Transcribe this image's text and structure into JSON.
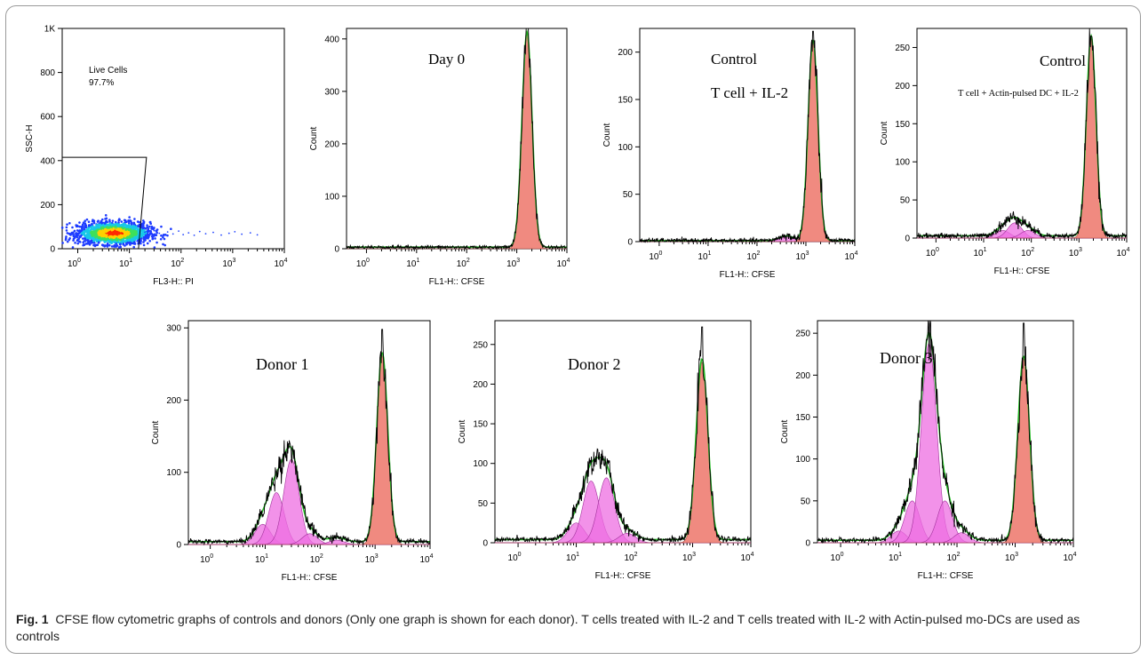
{
  "caption": {
    "label": "Fig. 1",
    "text": "CFSE flow cytometric graphs of controls and donors (Only one graph is shown for each donor). T cells treated with IL-2 and T cells treated with IL-2 with Actin-pulsed mo-DCs are used as controls"
  },
  "colors": {
    "parent_fill": "#f08a80",
    "generation_fill": "#ee6ee2",
    "fit_line": "#22bb22",
    "raw_line": "#000000",
    "gate_line": "#000000"
  },
  "chart_data": [
    {
      "id": "live-cells",
      "type": "scatter",
      "xlabel": "FL3-H:: PI",
      "ylabel": "SSC-H",
      "x_scale": "log",
      "xlim": [
        0.5,
        10000
      ],
      "x_ticks": [
        "10^0",
        "10^1",
        "10^2",
        "10^3",
        "10^4"
      ],
      "ylim": [
        0,
        1000
      ],
      "y_ticks": [
        "0",
        "200",
        "400",
        "600",
        "800",
        "1K"
      ],
      "gate": {
        "label": "Live Cells",
        "percent": "97.7%",
        "x_range": [
          0.5,
          15
        ],
        "y_range": [
          0,
          415
        ]
      },
      "density": {
        "x_center": 5,
        "y_center": 70,
        "x_spread_log": 0.35,
        "y_spread": 25
      },
      "sparse_events": [
        [
          20,
          75
        ],
        [
          25,
          62
        ],
        [
          30,
          82
        ],
        [
          38,
          70
        ],
        [
          45,
          58
        ],
        [
          55,
          76
        ],
        [
          70,
          67
        ],
        [
          90,
          80
        ],
        [
          110,
          64
        ],
        [
          140,
          72
        ],
        [
          180,
          61
        ],
        [
          230,
          78
        ],
        [
          300,
          68
        ],
        [
          420,
          74
        ],
        [
          600,
          62
        ],
        [
          850,
          70
        ],
        [
          1100,
          77
        ],
        [
          1500,
          66
        ],
        [
          2200,
          72
        ],
        [
          3000,
          63
        ]
      ]
    },
    {
      "id": "day-0",
      "type": "area",
      "annotation": [
        "Day 0"
      ],
      "annotation_style": "serif",
      "xlabel": "FL1-H:: CFSE",
      "ylabel": "Count",
      "x_scale": "log",
      "xlim": [
        0.4,
        10000
      ],
      "x_ticks": [
        "10^0",
        "10^1",
        "10^2",
        "10^3",
        "10^4"
      ],
      "ylim": [
        0,
        420
      ],
      "y_ticks": [
        0,
        100,
        200,
        300,
        400
      ],
      "parent_peak": {
        "center": 1600,
        "height": 410,
        "width_log": 0.1
      },
      "generation_peaks": [],
      "baseline": 3,
      "raw_peak_max": 420
    },
    {
      "id": "control-t-il2",
      "type": "area",
      "annotation": [
        "Control",
        "T cell + IL-2"
      ],
      "annotation_style": "serif",
      "xlabel": "FL1-H:: CFSE",
      "ylabel": "Count",
      "x_scale": "log",
      "xlim": [
        0.4,
        10000
      ],
      "x_ticks": [
        "10^0",
        "10^1",
        "10^2",
        "10^3",
        "10^4"
      ],
      "ylim": [
        0,
        225
      ],
      "y_ticks": [
        0,
        50,
        100,
        150,
        200
      ],
      "parent_peak": {
        "center": 1400,
        "height": 212,
        "width_log": 0.1
      },
      "generation_peaks": [
        {
          "center": 400,
          "height": 5,
          "width_log": 0.15
        }
      ],
      "baseline": 1,
      "raw_peak_max": 222
    },
    {
      "id": "control-t-dc-il2",
      "type": "area",
      "annotation": [
        "Control",
        "T cell + Actin-pulsed DC + IL-2"
      ],
      "annotation_style": "serif",
      "xlabel": "FL1-H:: CFSE",
      "ylabel": "Count",
      "x_scale": "log",
      "xlim": [
        0.4,
        10000
      ],
      "x_ticks": [
        "10^0",
        "10^1",
        "10^2",
        "10^3",
        "10^4"
      ],
      "ylim": [
        0,
        275
      ],
      "y_ticks": [
        0,
        50,
        100,
        150,
        200,
        250
      ],
      "parent_peak": {
        "center": 1800,
        "height": 262,
        "width_log": 0.1
      },
      "generation_peaks": [
        {
          "center": 25,
          "height": 10,
          "width_log": 0.15
        },
        {
          "center": 45,
          "height": 20,
          "width_log": 0.15
        },
        {
          "center": 85,
          "height": 10,
          "width_log": 0.15
        }
      ],
      "baseline": 3,
      "raw_peak_max": 265
    },
    {
      "id": "donor-1",
      "type": "area",
      "annotation": [
        "Donor 1"
      ],
      "annotation_style": "serif",
      "xlabel": "FL1-H:: CFSE",
      "ylabel": "Count",
      "x_scale": "log",
      "xlim": [
        0.4,
        10000
      ],
      "x_ticks": [
        "10^0",
        "10^1",
        "10^2",
        "10^3",
        "10^4"
      ],
      "ylim": [
        0,
        310
      ],
      "y_ticks": [
        0,
        100,
        200,
        300
      ],
      "parent_peak": {
        "center": 1350,
        "height": 262,
        "width_log": 0.1
      },
      "generation_peaks": [
        {
          "center": 9,
          "height": 28,
          "width_log": 0.14
        },
        {
          "center": 16,
          "height": 72,
          "width_log": 0.14
        },
        {
          "center": 30,
          "height": 118,
          "width_log": 0.14
        },
        {
          "center": 65,
          "height": 15,
          "width_log": 0.14
        },
        {
          "center": 200,
          "height": 6,
          "width_log": 0.14
        }
      ],
      "baseline": 4,
      "raw_peak_max": 298
    },
    {
      "id": "donor-2",
      "type": "area",
      "annotation": [
        "Donor 2"
      ],
      "annotation_style": "serif",
      "xlabel": "FL1-H:: CFSE",
      "ylabel": "Count",
      "x_scale": "log",
      "xlim": [
        0.4,
        10000
      ],
      "x_ticks": [
        "10^0",
        "10^1",
        "10^2",
        "10^3",
        "10^4"
      ],
      "ylim": [
        0,
        280
      ],
      "y_ticks": [
        0,
        50,
        100,
        150,
        200,
        250
      ],
      "parent_peak": {
        "center": 1450,
        "height": 228,
        "width_log": 0.1
      },
      "generation_peaks": [
        {
          "center": 10,
          "height": 25,
          "width_log": 0.14
        },
        {
          "center": 18,
          "height": 78,
          "width_log": 0.14
        },
        {
          "center": 33,
          "height": 82,
          "width_log": 0.14
        },
        {
          "center": 75,
          "height": 12,
          "width_log": 0.14
        }
      ],
      "baseline": 4,
      "raw_peak_max": 272
    },
    {
      "id": "donor-3",
      "type": "area",
      "annotation": [
        "Donor 3"
      ],
      "annotation_style": "serif",
      "xlabel": "FL1-H:: CFSE",
      "ylabel": "Count",
      "x_scale": "log",
      "xlim": [
        0.4,
        10000
      ],
      "x_ticks": [
        "10^0",
        "10^1",
        "10^2",
        "10^3",
        "10^4"
      ],
      "ylim": [
        0,
        265
      ],
      "y_ticks": [
        0,
        50,
        100,
        150,
        200,
        250
      ],
      "parent_peak": {
        "center": 1400,
        "height": 220,
        "width_log": 0.1
      },
      "generation_peaks": [
        {
          "center": 10,
          "height": 14,
          "width_log": 0.13
        },
        {
          "center": 17,
          "height": 50,
          "width_log": 0.13
        },
        {
          "center": 33,
          "height": 238,
          "width_log": 0.13
        },
        {
          "center": 62,
          "height": 50,
          "width_log": 0.13
        },
        {
          "center": 120,
          "height": 12,
          "width_log": 0.13
        }
      ],
      "baseline": 3,
      "raw_peak_max": 262
    }
  ]
}
